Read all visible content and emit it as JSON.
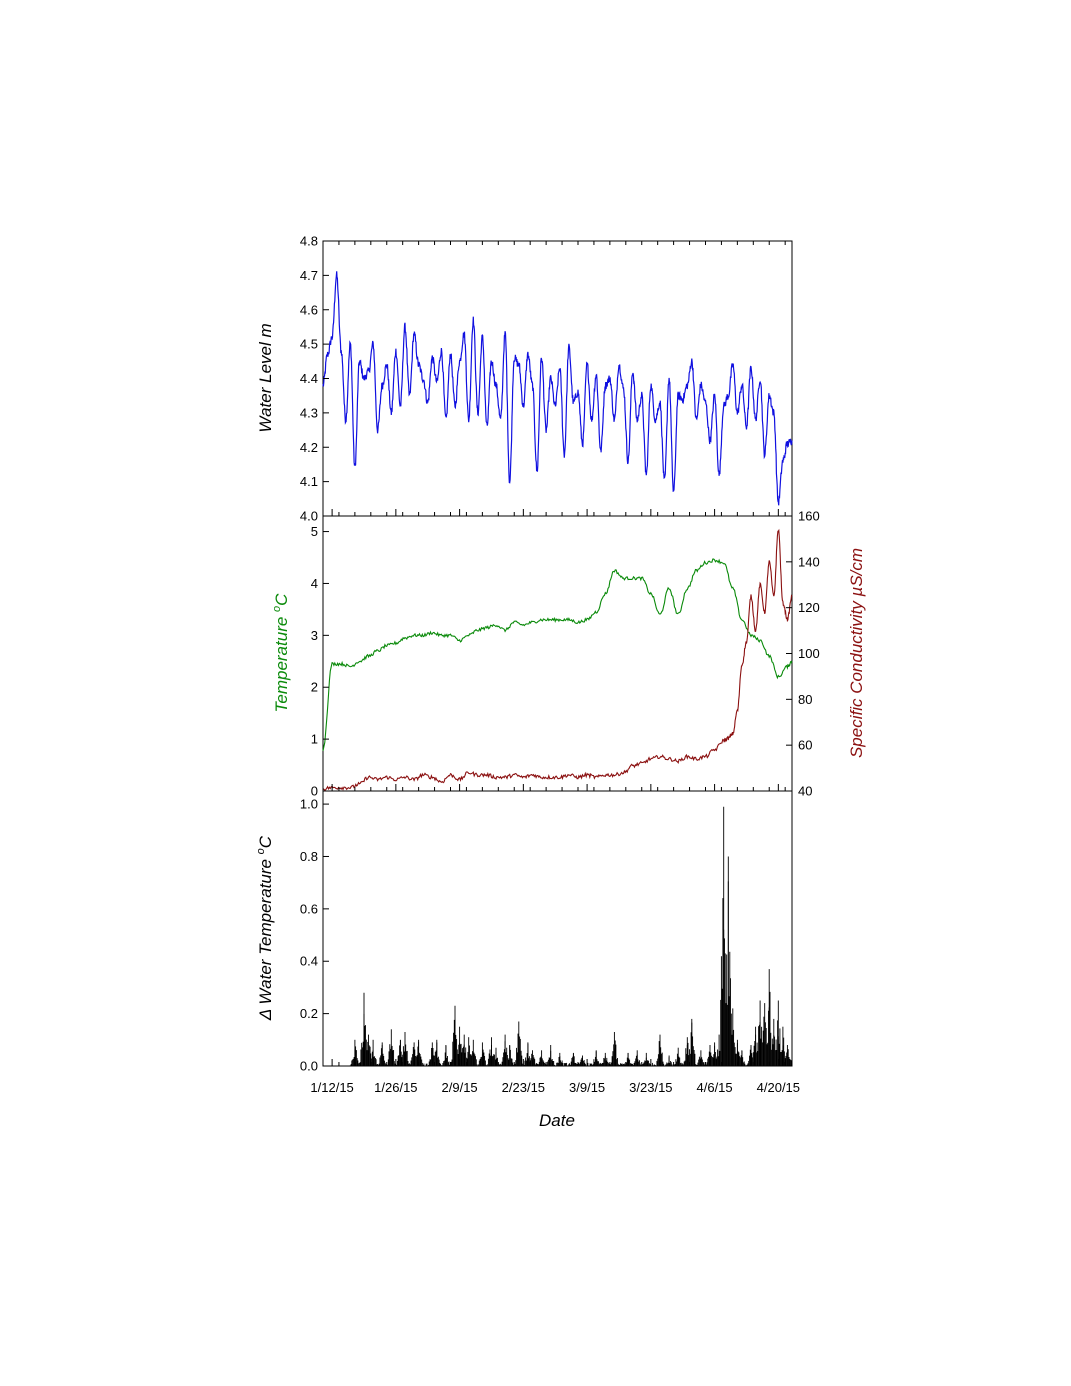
{
  "chart_data": [
    {
      "type": "line",
      "panel": "top",
      "ylabel": "Water Level m",
      "ylim": [
        4.0,
        4.8
      ],
      "yticks": [
        "4.0",
        "4.1",
        "4.2",
        "4.3",
        "4.4",
        "4.5",
        "4.6",
        "4.7",
        "4.8"
      ],
      "color": "#1010e0",
      "series": [
        {
          "x": [
            "2015-01-10",
            "2015-01-11",
            "2015-01-12",
            "2015-01-13",
            "2015-01-14",
            "2015-01-15",
            "2015-01-16",
            "2015-01-17",
            "2015-01-18",
            "2015-01-19",
            "2015-01-20",
            "2015-01-21",
            "2015-01-22",
            "2015-01-23",
            "2015-01-24",
            "2015-01-25",
            "2015-01-26",
            "2015-01-27",
            "2015-01-28",
            "2015-01-29",
            "2015-01-30",
            "2015-01-31",
            "2015-02-01",
            "2015-02-02",
            "2015-02-03",
            "2015-02-04",
            "2015-02-05",
            "2015-02-06",
            "2015-02-07",
            "2015-02-08",
            "2015-02-09",
            "2015-02-10",
            "2015-02-11",
            "2015-02-12",
            "2015-02-13",
            "2015-02-14",
            "2015-02-15",
            "2015-02-16",
            "2015-02-17",
            "2015-02-18",
            "2015-02-19",
            "2015-02-20",
            "2015-02-21",
            "2015-02-22",
            "2015-02-23",
            "2015-02-24",
            "2015-02-25",
            "2015-02-26",
            "2015-02-27",
            "2015-02-28",
            "2015-03-01",
            "2015-03-02",
            "2015-03-03",
            "2015-03-04",
            "2015-03-05",
            "2015-03-06",
            "2015-03-07",
            "2015-03-08",
            "2015-03-09",
            "2015-03-10",
            "2015-03-11",
            "2015-03-12",
            "2015-03-13",
            "2015-03-14",
            "2015-03-15",
            "2015-03-16",
            "2015-03-17",
            "2015-03-18",
            "2015-03-19",
            "2015-03-20",
            "2015-03-21",
            "2015-03-22",
            "2015-03-23",
            "2015-03-24",
            "2015-03-25",
            "2015-03-26",
            "2015-03-27",
            "2015-03-28",
            "2015-03-29",
            "2015-03-30",
            "2015-03-31",
            "2015-04-01",
            "2015-04-02",
            "2015-04-03",
            "2015-04-04",
            "2015-04-05",
            "2015-04-06",
            "2015-04-07",
            "2015-04-08",
            "2015-04-09",
            "2015-04-10",
            "2015-04-11",
            "2015-04-12",
            "2015-04-13",
            "2015-04-14",
            "2015-04-15",
            "2015-04-16",
            "2015-04-17",
            "2015-04-18",
            "2015-04-19",
            "2015-04-20",
            "2015-04-21",
            "2015-04-22",
            "2015-04-23"
          ],
          "values": [
            4.38,
            4.47,
            4.52,
            4.7,
            4.48,
            4.28,
            4.5,
            4.14,
            4.45,
            4.4,
            4.42,
            4.5,
            4.25,
            4.38,
            4.44,
            4.3,
            4.48,
            4.32,
            4.55,
            4.35,
            4.53,
            4.44,
            4.4,
            4.33,
            4.46,
            4.39,
            4.48,
            4.28,
            4.47,
            4.32,
            4.45,
            4.53,
            4.28,
            4.57,
            4.3,
            4.52,
            4.26,
            4.45,
            4.38,
            4.28,
            4.53,
            4.1,
            4.46,
            4.44,
            4.32,
            4.47,
            4.38,
            4.13,
            4.46,
            4.25,
            4.4,
            4.32,
            4.43,
            4.18,
            4.49,
            4.33,
            4.36,
            4.21,
            4.44,
            4.28,
            4.41,
            4.19,
            4.38,
            4.4,
            4.28,
            4.44,
            4.37,
            4.16,
            4.42,
            4.28,
            4.35,
            4.12,
            4.38,
            4.28,
            4.33,
            4.1,
            4.4,
            4.07,
            4.35,
            4.34,
            4.38,
            4.45,
            4.28,
            4.38,
            4.33,
            4.22,
            4.35,
            4.12,
            4.32,
            4.35,
            4.44,
            4.3,
            4.38,
            4.26,
            4.43,
            4.28,
            4.4,
            4.18,
            4.35,
            4.3,
            4.04,
            4.16,
            4.21,
            4.22
          ]
        }
      ]
    },
    {
      "type": "line",
      "panel": "middle",
      "ylabel": "Temperature °C",
      "ylabel_text": "Temperature",
      "ylabel_unit": "C",
      "ylabel_sup": "o",
      "ylim": [
        0,
        5.3
      ],
      "yticks": [
        "0",
        "1",
        "2",
        "3",
        "4",
        "5"
      ],
      "y2label": "Specific Conductivity µS/cm",
      "y2label_text": "Specific Conductivity µS/cm",
      "y2lim": [
        40,
        160
      ],
      "y2ticks": [
        "40",
        "60",
        "80",
        "100",
        "120",
        "140",
        "160"
      ],
      "series": [
        {
          "name": "Temperature",
          "axis": "left",
          "color": "#0a8a0a",
          "x": [
            "2015-01-10",
            "2015-01-12",
            "2015-01-14",
            "2015-01-16",
            "2015-01-18",
            "2015-01-20",
            "2015-01-22",
            "2015-01-24",
            "2015-01-26",
            "2015-01-28",
            "2015-01-30",
            "2015-02-01",
            "2015-02-03",
            "2015-02-05",
            "2015-02-07",
            "2015-02-09",
            "2015-02-11",
            "2015-02-13",
            "2015-02-15",
            "2015-02-17",
            "2015-02-19",
            "2015-02-21",
            "2015-02-23",
            "2015-02-25",
            "2015-02-27",
            "2015-03-01",
            "2015-03-03",
            "2015-03-05",
            "2015-03-07",
            "2015-03-09",
            "2015-03-11",
            "2015-03-13",
            "2015-03-15",
            "2015-03-17",
            "2015-03-19",
            "2015-03-21",
            "2015-03-23",
            "2015-03-25",
            "2015-03-27",
            "2015-03-29",
            "2015-03-31",
            "2015-04-02",
            "2015-04-04",
            "2015-04-06",
            "2015-04-08",
            "2015-04-10",
            "2015-04-12",
            "2015-04-14",
            "2015-04-16",
            "2015-04-18",
            "2015-04-20",
            "2015-04-22",
            "2015-04-23"
          ],
          "values": [
            0.8,
            2.45,
            2.45,
            2.4,
            2.5,
            2.6,
            2.7,
            2.8,
            2.85,
            2.95,
            3.0,
            3.0,
            3.05,
            3.0,
            3.0,
            2.9,
            3.0,
            3.1,
            3.15,
            3.2,
            3.1,
            3.25,
            3.2,
            3.25,
            3.3,
            3.3,
            3.3,
            3.3,
            3.25,
            3.3,
            3.45,
            3.8,
            4.25,
            4.1,
            4.1,
            4.1,
            3.8,
            3.4,
            3.9,
            3.4,
            3.9,
            4.25,
            4.4,
            4.45,
            4.4,
            3.9,
            3.3,
            3.0,
            2.9,
            2.6,
            2.2,
            2.4,
            2.5
          ]
        },
        {
          "name": "Specific Conductivity",
          "axis": "right",
          "color": "#8b1010",
          "x": [
            "2015-01-10",
            "2015-01-12",
            "2015-01-14",
            "2015-01-16",
            "2015-01-18",
            "2015-01-20",
            "2015-01-22",
            "2015-01-24",
            "2015-01-26",
            "2015-01-28",
            "2015-01-30",
            "2015-02-01",
            "2015-02-03",
            "2015-02-05",
            "2015-02-07",
            "2015-02-09",
            "2015-02-11",
            "2015-02-13",
            "2015-02-15",
            "2015-02-17",
            "2015-02-19",
            "2015-02-21",
            "2015-02-23",
            "2015-02-25",
            "2015-02-27",
            "2015-03-01",
            "2015-03-03",
            "2015-03-05",
            "2015-03-07",
            "2015-03-09",
            "2015-03-11",
            "2015-03-13",
            "2015-03-15",
            "2015-03-17",
            "2015-03-19",
            "2015-03-21",
            "2015-03-23",
            "2015-03-25",
            "2015-03-27",
            "2015-03-29",
            "2015-03-31",
            "2015-04-02",
            "2015-04-04",
            "2015-04-06",
            "2015-04-08",
            "2015-04-09",
            "2015-04-10",
            "2015-04-11",
            "2015-04-12",
            "2015-04-13",
            "2015-04-14",
            "2015-04-15",
            "2015-04-16",
            "2015-04-17",
            "2015-04-18",
            "2015-04-19",
            "2015-04-20",
            "2015-04-21",
            "2015-04-22",
            "2015-04-23"
          ],
          "values": [
            41,
            41.5,
            41.5,
            41.5,
            43,
            46,
            45,
            46,
            45,
            46,
            45,
            47,
            46,
            44,
            47,
            45,
            48,
            47,
            47,
            46,
            46,
            47,
            46,
            47,
            46,
            46,
            46,
            47,
            46,
            47,
            46,
            47,
            47,
            48,
            51,
            52,
            54,
            55,
            54,
            53,
            55,
            54,
            55,
            58,
            62,
            63,
            65,
            75,
            95,
            105,
            125,
            110,
            130,
            118,
            140,
            125,
            154,
            122,
            115,
            125
          ]
        }
      ]
    },
    {
      "type": "bar",
      "panel": "bottom",
      "ylabel": "Δ Water Temperature °C",
      "ylabel_text": "Water Temperature",
      "ylabel_delta": "Δ",
      "ylabel_unit": "C",
      "ylabel_sup": "o",
      "ylim": [
        0,
        1.05
      ],
      "yticks": [
        "0.0",
        "0.2",
        "0.4",
        "0.6",
        "0.8",
        "1.0"
      ],
      "xlabel": "Date",
      "xlim": [
        "2015-01-10",
        "2015-04-23"
      ],
      "xtick_labels": [
        "1/12/15",
        "1/26/15",
        "2/9/15",
        "2/23/15",
        "3/9/15",
        "3/23/15",
        "4/6/15",
        "4/20/15"
      ],
      "xtick_dates": [
        "2015-01-12",
        "2015-01-26",
        "2015-02-09",
        "2015-02-23",
        "2015-03-09",
        "2015-03-23",
        "2015-04-06",
        "2015-04-20"
      ],
      "color": "#000000",
      "peaks": {
        "x": [
          "2015-01-17",
          "2015-01-19",
          "2015-01-20",
          "2015-01-21",
          "2015-01-23",
          "2015-01-25",
          "2015-01-27",
          "2015-01-28",
          "2015-01-30",
          "2015-01-31",
          "2015-02-03",
          "2015-02-04",
          "2015-02-06",
          "2015-02-08",
          "2015-02-09",
          "2015-02-10",
          "2015-02-11",
          "2015-02-12",
          "2015-02-14",
          "2015-02-16",
          "2015-02-17",
          "2015-02-19",
          "2015-02-20",
          "2015-02-22",
          "2015-02-24",
          "2015-02-25",
          "2015-02-27",
          "2015-03-01",
          "2015-03-03",
          "2015-03-06",
          "2015-03-08",
          "2015-03-11",
          "2015-03-13",
          "2015-03-15",
          "2015-03-18",
          "2015-03-20",
          "2015-03-22",
          "2015-03-25",
          "2015-03-27",
          "2015-03-29",
          "2015-03-31",
          "2015-04-01",
          "2015-04-03",
          "2015-04-05",
          "2015-04-06",
          "2015-04-07",
          "2015-04-08",
          "2015-04-09",
          "2015-04-10",
          "2015-04-11",
          "2015-04-12",
          "2015-04-14",
          "2015-04-15",
          "2015-04-16",
          "2015-04-17",
          "2015-04-18",
          "2015-04-19",
          "2015-04-20",
          "2015-04-21",
          "2015-04-22",
          "2015-04-23"
        ],
        "values": [
          0.1,
          0.28,
          0.12,
          0.1,
          0.09,
          0.14,
          0.1,
          0.13,
          0.09,
          0.1,
          0.09,
          0.1,
          0.08,
          0.23,
          0.15,
          0.12,
          0.11,
          0.1,
          0.09,
          0.11,
          0.07,
          0.12,
          0.08,
          0.17,
          0.09,
          0.06,
          0.06,
          0.08,
          0.05,
          0.05,
          0.04,
          0.06,
          0.05,
          0.13,
          0.05,
          0.06,
          0.05,
          0.12,
          0.04,
          0.07,
          0.11,
          0.18,
          0.06,
          0.08,
          0.09,
          0.12,
          0.99,
          0.8,
          0.22,
          0.1,
          0.06,
          0.08,
          0.15,
          0.25,
          0.24,
          0.37,
          0.18,
          0.25,
          0.15,
          0.08,
          0.04
        ]
      }
    }
  ]
}
